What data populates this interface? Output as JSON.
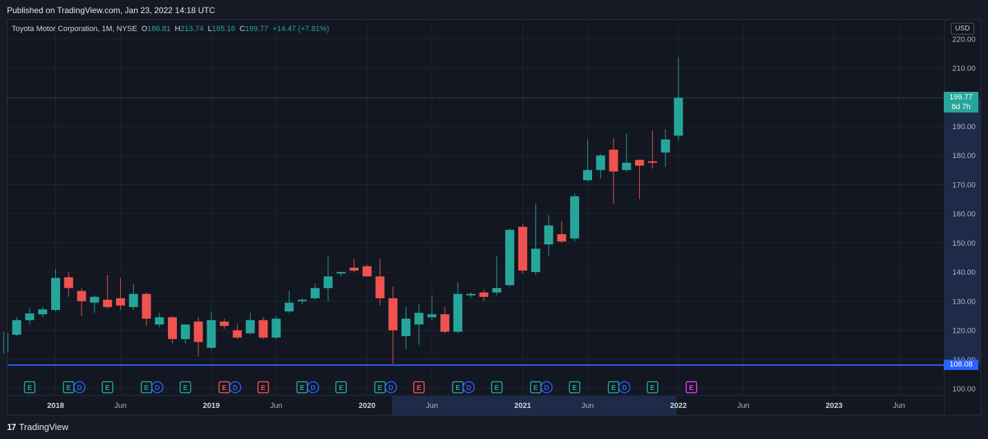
{
  "header": {
    "published": "Published on TradingView.com, Jan 23, 2022 14:18 UTC"
  },
  "legend": {
    "symbol": "Toyota Motor Corporation, 1M, NYSE",
    "o_label": "O",
    "o_value": "186.81",
    "h_label": "H",
    "h_value": "213.74",
    "l_label": "L",
    "l_value": "185.16",
    "c_label": "C",
    "c_value": "199.77",
    "change": "+14.47 (+7.81%)"
  },
  "currency": "USD",
  "last_price_tag": {
    "price": "199.77",
    "countdown": "8d 7h"
  },
  "horizontal_line_tag": "108.08",
  "footer": {
    "brand": "TradingView",
    "logo_glyph": "17"
  },
  "colors": {
    "up": "#26a69a",
    "down": "#ef5350",
    "line": "#2962ff",
    "earnings_up": "#26a69a",
    "earnings_down": "#ef5350",
    "dividend": "#2962ff",
    "future_earnings": "#e040fb"
  },
  "chart_data": {
    "type": "candlestick",
    "timeframe": "1M",
    "y_ticks": [
      100,
      110,
      120,
      130,
      140,
      150,
      160,
      170,
      180,
      190,
      210,
      220
    ],
    "y_tick_labels": [
      "100.00",
      "110.00",
      "120.00",
      "130.00",
      "140.00",
      "150.00",
      "160.00",
      "170.00",
      "180.00",
      "190.00",
      "210.00",
      "220.00"
    ],
    "x_ticks": [
      {
        "label": "2018",
        "month": "2018-01"
      },
      {
        "label": "Jun",
        "month": "2018-06"
      },
      {
        "label": "2019",
        "month": "2019-01"
      },
      {
        "label": "Jun",
        "month": "2019-06"
      },
      {
        "label": "2020",
        "month": "2020-01"
      },
      {
        "label": "Jun",
        "month": "2020-06"
      },
      {
        "label": "2021",
        "month": "2021-01"
      },
      {
        "label": "Jun",
        "month": "2021-06"
      },
      {
        "label": "2022",
        "month": "2022-01"
      },
      {
        "label": "Jun",
        "month": "2022-06"
      },
      {
        "label": "2023",
        "month": "2023-01"
      },
      {
        "label": "Jun",
        "month": "2023-06"
      }
    ],
    "horizontal_line": 108.08,
    "candles": [
      {
        "t": "2017-09",
        "o": 112.5,
        "h": 119.5,
        "l": 112.0,
        "c": 119.0
      },
      {
        "t": "2017-10",
        "o": 118.5,
        "h": 124.5,
        "l": 118.0,
        "c": 123.5
      },
      {
        "t": "2017-11",
        "o": 123.5,
        "h": 127.5,
        "l": 122.0,
        "c": 125.8
      },
      {
        "t": "2017-12",
        "o": 125.5,
        "h": 128.0,
        "l": 124.5,
        "c": 127.2
      },
      {
        "t": "2018-01",
        "o": 127.0,
        "h": 141.0,
        "l": 126.5,
        "c": 138.0
      },
      {
        "t": "2018-02",
        "o": 138.2,
        "h": 140.0,
        "l": 131.5,
        "c": 134.5
      },
      {
        "t": "2018-03",
        "o": 133.5,
        "h": 134.5,
        "l": 125.0,
        "c": 130.0
      },
      {
        "t": "2018-04",
        "o": 129.5,
        "h": 132.0,
        "l": 126.0,
        "c": 131.5
      },
      {
        "t": "2018-05",
        "o": 130.5,
        "h": 139.0,
        "l": 127.5,
        "c": 128.0
      },
      {
        "t": "2018-06",
        "o": 131.0,
        "h": 138.0,
        "l": 127.0,
        "c": 128.5
      },
      {
        "t": "2018-07",
        "o": 128.0,
        "h": 136.0,
        "l": 127.0,
        "c": 132.5
      },
      {
        "t": "2018-08",
        "o": 132.5,
        "h": 133.0,
        "l": 121.5,
        "c": 124.0
      },
      {
        "t": "2018-09",
        "o": 122.0,
        "h": 126.0,
        "l": 121.0,
        "c": 124.5
      },
      {
        "t": "2018-10",
        "o": 124.5,
        "h": 125.0,
        "l": 115.5,
        "c": 117.0
      },
      {
        "t": "2018-11",
        "o": 117.0,
        "h": 122.0,
        "l": 115.5,
        "c": 122.0
      },
      {
        "t": "2018-12",
        "o": 123.0,
        "h": 124.5,
        "l": 111.0,
        "c": 116.0
      },
      {
        "t": "2019-01",
        "o": 114.0,
        "h": 126.5,
        "l": 113.5,
        "c": 123.5
      },
      {
        "t": "2019-02",
        "o": 123.0,
        "h": 124.0,
        "l": 120.5,
        "c": 121.5
      },
      {
        "t": "2019-03",
        "o": 120.0,
        "h": 122.0,
        "l": 117.0,
        "c": 117.5
      },
      {
        "t": "2019-04",
        "o": 119.0,
        "h": 126.0,
        "l": 118.5,
        "c": 123.5
      },
      {
        "t": "2019-05",
        "o": 123.5,
        "h": 124.5,
        "l": 117.0,
        "c": 117.5
      },
      {
        "t": "2019-06",
        "o": 117.5,
        "h": 125.0,
        "l": 117.0,
        "c": 124.0
      },
      {
        "t": "2019-07",
        "o": 126.5,
        "h": 133.5,
        "l": 126.0,
        "c": 129.5
      },
      {
        "t": "2019-08",
        "o": 130.0,
        "h": 131.0,
        "l": 129.0,
        "c": 130.5
      },
      {
        "t": "2019-09",
        "o": 131.0,
        "h": 136.0,
        "l": 130.5,
        "c": 134.5
      },
      {
        "t": "2019-10",
        "o": 134.5,
        "h": 145.5,
        "l": 130.0,
        "c": 138.5
      },
      {
        "t": "2019-11",
        "o": 139.5,
        "h": 140.0,
        "l": 138.5,
        "c": 140.0
      },
      {
        "t": "2019-12",
        "o": 141.5,
        "h": 144.5,
        "l": 140.0,
        "c": 140.5
      },
      {
        "t": "2020-01",
        "o": 142.0,
        "h": 142.5,
        "l": 138.5,
        "c": 138.5
      },
      {
        "t": "2020-02",
        "o": 138.5,
        "h": 144.5,
        "l": 128.5,
        "c": 131.0
      },
      {
        "t": "2020-03",
        "o": 131.0,
        "h": 135.0,
        "l": 108.5,
        "c": 120.0
      },
      {
        "t": "2020-04",
        "o": 118.0,
        "h": 128.0,
        "l": 113.5,
        "c": 124.0
      },
      {
        "t": "2020-05",
        "o": 122.0,
        "h": 129.0,
        "l": 115.0,
        "c": 126.0
      },
      {
        "t": "2020-06",
        "o": 124.5,
        "h": 132.0,
        "l": 123.5,
        "c": 125.5
      },
      {
        "t": "2020-07",
        "o": 125.5,
        "h": 128.0,
        "l": 119.0,
        "c": 119.5
      },
      {
        "t": "2020-08",
        "o": 119.5,
        "h": 136.5,
        "l": 119.0,
        "c": 132.5
      },
      {
        "t": "2020-09",
        "o": 132.0,
        "h": 133.0,
        "l": 131.0,
        "c": 132.5
      },
      {
        "t": "2020-10",
        "o": 133.0,
        "h": 134.0,
        "l": 130.0,
        "c": 131.5
      },
      {
        "t": "2020-11",
        "o": 133.0,
        "h": 145.5,
        "l": 132.0,
        "c": 134.5
      },
      {
        "t": "2020-12",
        "o": 135.5,
        "h": 155.0,
        "l": 135.0,
        "c": 154.5
      },
      {
        "t": "2021-01",
        "o": 155.5,
        "h": 156.5,
        "l": 139.5,
        "c": 140.5
      },
      {
        "t": "2021-02",
        "o": 140.0,
        "h": 163.5,
        "l": 139.0,
        "c": 148.0
      },
      {
        "t": "2021-03",
        "o": 149.5,
        "h": 159.5,
        "l": 145.5,
        "c": 156.0
      },
      {
        "t": "2021-04",
        "o": 153.0,
        "h": 157.5,
        "l": 150.0,
        "c": 150.5
      },
      {
        "t": "2021-05",
        "o": 151.5,
        "h": 167.0,
        "l": 150.5,
        "c": 166.0
      },
      {
        "t": "2021-06",
        "o": 171.5,
        "h": 185.5,
        "l": 171.0,
        "c": 175.0
      },
      {
        "t": "2021-07",
        "o": 175.0,
        "h": 180.5,
        "l": 172.0,
        "c": 180.0
      },
      {
        "t": "2021-08",
        "o": 182.0,
        "h": 186.0,
        "l": 163.5,
        "c": 174.5
      },
      {
        "t": "2021-09",
        "o": 175.0,
        "h": 187.5,
        "l": 174.5,
        "c": 177.5
      },
      {
        "t": "2021-10",
        "o": 178.5,
        "h": 178.5,
        "l": 165.0,
        "c": 176.5
      },
      {
        "t": "2021-11",
        "o": 178.0,
        "h": 188.5,
        "l": 175.5,
        "c": 177.5
      },
      {
        "t": "2021-12",
        "o": 181.0,
        "h": 189.0,
        "l": 176.0,
        "c": 185.5
      },
      {
        "t": "2022-01",
        "o": 186.81,
        "h": 213.74,
        "l": 185.16,
        "c": 199.77
      }
    ],
    "events": [
      {
        "t": "2017-11",
        "type": "E",
        "kind": "earnings_up"
      },
      {
        "t": "2018-02",
        "type": "E",
        "kind": "earnings_up"
      },
      {
        "t": "2018-03",
        "type": "D",
        "kind": "dividend"
      },
      {
        "t": "2018-05",
        "type": "E",
        "kind": "earnings_up"
      },
      {
        "t": "2018-08",
        "type": "E",
        "kind": "earnings_up"
      },
      {
        "t": "2018-09",
        "type": "D",
        "kind": "dividend"
      },
      {
        "t": "2018-11",
        "type": "E",
        "kind": "earnings_up"
      },
      {
        "t": "2019-02",
        "type": "E",
        "kind": "earnings_down"
      },
      {
        "t": "2019-03",
        "type": "D",
        "kind": "dividend"
      },
      {
        "t": "2019-05",
        "type": "E",
        "kind": "earnings_down"
      },
      {
        "t": "2019-08",
        "type": "E",
        "kind": "earnings_up"
      },
      {
        "t": "2019-09",
        "type": "D",
        "kind": "dividend"
      },
      {
        "t": "2019-11",
        "type": "E",
        "kind": "earnings_up"
      },
      {
        "t": "2020-02",
        "type": "E",
        "kind": "earnings_up"
      },
      {
        "t": "2020-03",
        "type": "D",
        "kind": "dividend"
      },
      {
        "t": "2020-05",
        "type": "E",
        "kind": "earnings_down"
      },
      {
        "t": "2020-08",
        "type": "E",
        "kind": "earnings_up"
      },
      {
        "t": "2020-09",
        "type": "D",
        "kind": "dividend"
      },
      {
        "t": "2020-11",
        "type": "E",
        "kind": "earnings_up"
      },
      {
        "t": "2021-02",
        "type": "E",
        "kind": "earnings_up"
      },
      {
        "t": "2021-03",
        "type": "D",
        "kind": "dividend"
      },
      {
        "t": "2021-05",
        "type": "E",
        "kind": "earnings_up"
      },
      {
        "t": "2021-08",
        "type": "E",
        "kind": "earnings_up"
      },
      {
        "t": "2021-09",
        "type": "D",
        "kind": "dividend"
      },
      {
        "t": "2021-11",
        "type": "E",
        "kind": "earnings_up"
      },
      {
        "t": "2022-02",
        "type": "E",
        "kind": "future_earnings"
      }
    ]
  }
}
